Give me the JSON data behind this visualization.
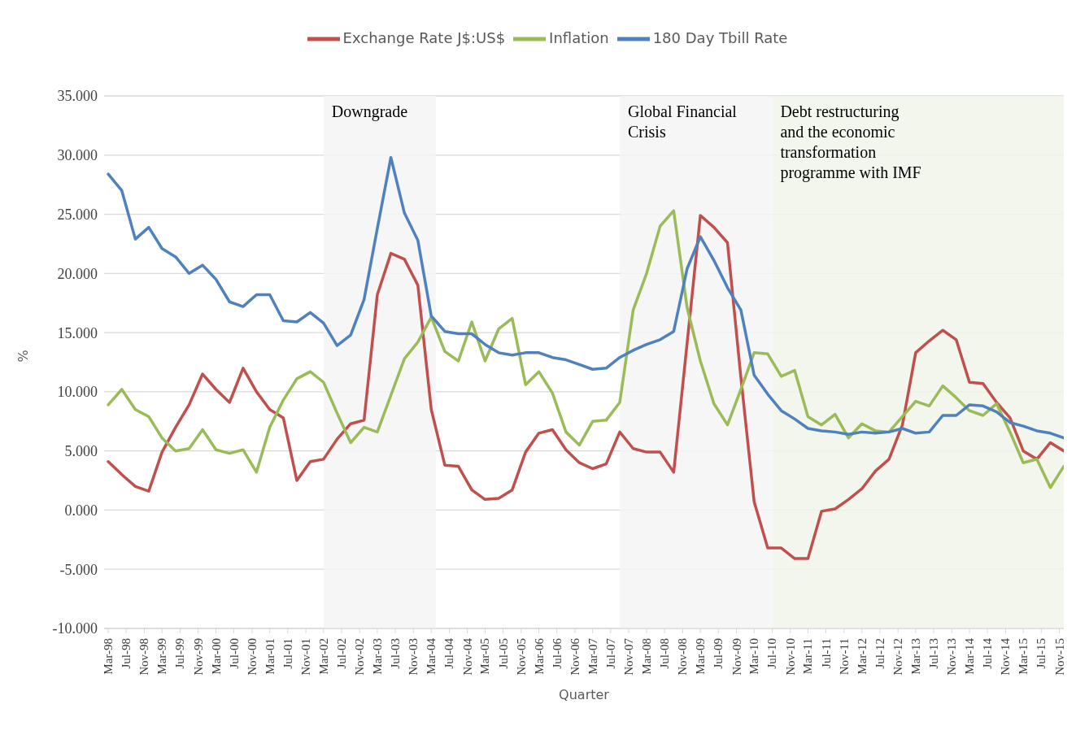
{
  "chart_data": {
    "type": "line",
    "xlabel": "Quarter",
    "ylabel": "%",
    "x": [
      "1998-03",
      "1998-06",
      "1998-09",
      "1998-12",
      "1999-03",
      "1999-06",
      "1999-09",
      "1999-12",
      "2000-03",
      "2000-06",
      "2000-09",
      "2000-12",
      "2001-03",
      "2001-06",
      "2001-09",
      "2001-12",
      "2002-03",
      "2002-06",
      "2002-09",
      "2002-12",
      "2003-03",
      "2003-06",
      "2003-09",
      "2003-12",
      "2004-03",
      "2004-06",
      "2004-09",
      "2004-12",
      "2005-03",
      "2005-06",
      "2005-09",
      "2005-12",
      "2006-03",
      "2006-06",
      "2006-09",
      "2006-12",
      "2007-03",
      "2007-06",
      "2007-09",
      "2007-12",
      "2008-03",
      "2008-06",
      "2008-09",
      "2008-12",
      "2009-03",
      "2009-06",
      "2009-09",
      "2009-12",
      "2010-03",
      "2010-06",
      "2010-09",
      "2010-12",
      "2011-03",
      "2011-06",
      "2011-09",
      "2011-12",
      "2012-03",
      "2012-06",
      "2012-09",
      "2012-12",
      "2013-03",
      "2013-06",
      "2013-09",
      "2013-12",
      "2014-03",
      "2014-06",
      "2014-09",
      "2014-12",
      "2015-03",
      "2015-06",
      "2015-09",
      "2015-12"
    ],
    "series": [
      {
        "name": "Exchange Rate J$:US$",
        "color": "#c0504d",
        "values": [
          4.1,
          3.0,
          2.0,
          1.6,
          4.9,
          7.0,
          8.9,
          11.5,
          10.2,
          9.1,
          12.0,
          10.0,
          8.5,
          7.8,
          2.5,
          4.1,
          4.3,
          6.0,
          7.3,
          7.6,
          18.2,
          21.7,
          21.2,
          19.0,
          8.5,
          3.8,
          3.7,
          1.7,
          0.9,
          1.0,
          1.7,
          4.9,
          6.5,
          6.8,
          5.1,
          4.0,
          3.5,
          3.9,
          6.6,
          5.2,
          4.9,
          4.9,
          3.2,
          14.1,
          24.9,
          23.9,
          22.6,
          11.2,
          0.7,
          -3.2,
          -3.2,
          -4.1,
          -4.1,
          -0.1,
          0.1,
          0.9,
          1.8,
          3.3,
          4.3,
          7.2,
          13.3,
          14.3,
          15.2,
          14.4,
          10.8,
          10.7,
          9.1,
          7.8,
          5.0,
          4.3,
          5.7,
          5.0
        ]
      },
      {
        "name": "Inflation",
        "color": "#9bbb59",
        "values": [
          8.9,
          10.2,
          8.5,
          7.9,
          6.1,
          5.0,
          5.2,
          6.8,
          5.1,
          4.8,
          5.1,
          3.2,
          7.0,
          9.3,
          11.1,
          11.7,
          10.8,
          8.2,
          5.7,
          7.0,
          6.6,
          9.7,
          12.8,
          14.2,
          16.3,
          13.4,
          12.6,
          15.9,
          12.6,
          15.3,
          16.2,
          10.6,
          11.7,
          9.9,
          6.6,
          5.5,
          7.5,
          7.6,
          9.1,
          16.9,
          20.0,
          24.0,
          25.3,
          17.1,
          12.6,
          9.0,
          7.2,
          10.2,
          13.3,
          13.2,
          11.3,
          11.8,
          7.9,
          7.2,
          8.1,
          6.1,
          7.3,
          6.7,
          6.6,
          7.9,
          9.2,
          8.8,
          10.5,
          9.5,
          8.4,
          8.0,
          9.0,
          6.6,
          4.0,
          4.3,
          1.9,
          3.7
        ]
      },
      {
        "name": "180 Day Tbill Rate",
        "color": "#4f81bd",
        "values": [
          28.4,
          27.0,
          22.9,
          23.9,
          22.1,
          21.4,
          20.0,
          20.7,
          19.5,
          17.6,
          17.2,
          18.2,
          18.2,
          16.0,
          15.9,
          16.7,
          15.8,
          13.9,
          14.8,
          17.8,
          23.8,
          29.8,
          25.1,
          22.8,
          16.4,
          15.1,
          14.9,
          14.9,
          14.0,
          13.3,
          13.1,
          13.3,
          13.3,
          12.9,
          12.7,
          12.3,
          11.9,
          12.0,
          12.9,
          13.5,
          14.0,
          14.4,
          15.1,
          20.4,
          23.1,
          21.1,
          18.8,
          16.9,
          11.4,
          9.8,
          8.4,
          7.7,
          6.9,
          6.7,
          6.6,
          6.4,
          6.6,
          6.5,
          6.6,
          6.9,
          6.5,
          6.6,
          8.0,
          8.0,
          8.9,
          8.8,
          8.3,
          7.4,
          7.1,
          6.7,
          6.5,
          6.1
        ]
      }
    ],
    "xlim": [
      "1998-02",
      "2015-12"
    ],
    "xticks": [
      {
        "value": "1998-03",
        "label": "Mar-98"
      },
      {
        "value": "1998-07",
        "label": "Jul-98"
      },
      {
        "value": "1998-11",
        "label": "Nov-98"
      },
      {
        "value": "1999-03",
        "label": "Mar-99"
      },
      {
        "value": "1999-07",
        "label": "Jul-99"
      },
      {
        "value": "1999-11",
        "label": "Nov-99"
      },
      {
        "value": "2000-03",
        "label": "Mar-00"
      },
      {
        "value": "2000-07",
        "label": "Jul-00"
      },
      {
        "value": "2000-11",
        "label": "Nov-00"
      },
      {
        "value": "2001-03",
        "label": "Mar-01"
      },
      {
        "value": "2001-07",
        "label": "Jul-01"
      },
      {
        "value": "2001-11",
        "label": "Nov-01"
      },
      {
        "value": "2002-03",
        "label": "Mar-02"
      },
      {
        "value": "2002-07",
        "label": "Jul-02"
      },
      {
        "value": "2002-11",
        "label": "Nov-02"
      },
      {
        "value": "2003-03",
        "label": "Mar-03"
      },
      {
        "value": "2003-07",
        "label": "Jul-03"
      },
      {
        "value": "2003-11",
        "label": "Nov-03"
      },
      {
        "value": "2004-03",
        "label": "Mar-04"
      },
      {
        "value": "2004-07",
        "label": "Jul-04"
      },
      {
        "value": "2004-11",
        "label": "Nov-04"
      },
      {
        "value": "2005-03",
        "label": "Mar-05"
      },
      {
        "value": "2005-07",
        "label": "Jul-05"
      },
      {
        "value": "2005-11",
        "label": "Nov-05"
      },
      {
        "value": "2006-03",
        "label": "Mar-06"
      },
      {
        "value": "2006-07",
        "label": "Jul-06"
      },
      {
        "value": "2006-11",
        "label": "Nov-06"
      },
      {
        "value": "2007-03",
        "label": "Mar-07"
      },
      {
        "value": "2007-07",
        "label": "Jul-07"
      },
      {
        "value": "2007-11",
        "label": "Nov-07"
      },
      {
        "value": "2008-03",
        "label": "Mar-08"
      },
      {
        "value": "2008-07",
        "label": "Jul-08"
      },
      {
        "value": "2008-11",
        "label": "Nov-08"
      },
      {
        "value": "2009-03",
        "label": "Mar-09"
      },
      {
        "value": "2009-07",
        "label": "Jul-09"
      },
      {
        "value": "2009-11",
        "label": "Nov-09"
      },
      {
        "value": "2010-03",
        "label": "Mar-10"
      },
      {
        "value": "2010-07",
        "label": "Jul-10"
      },
      {
        "value": "2010-11",
        "label": "Nov-10"
      },
      {
        "value": "2011-03",
        "label": "Mar-11"
      },
      {
        "value": "2011-07",
        "label": "Jul-11"
      },
      {
        "value": "2011-11",
        "label": "Nov-11"
      },
      {
        "value": "2012-03",
        "label": "Mar-12"
      },
      {
        "value": "2012-07",
        "label": "Jul-12"
      },
      {
        "value": "2012-11",
        "label": "Nov-12"
      },
      {
        "value": "2013-03",
        "label": "Mar-13"
      },
      {
        "value": "2013-07",
        "label": "Jul-13"
      },
      {
        "value": "2013-11",
        "label": "Nov-13"
      },
      {
        "value": "2014-03",
        "label": "Mar-14"
      },
      {
        "value": "2014-07",
        "label": "Jul-14"
      },
      {
        "value": "2014-11",
        "label": "Nov-14"
      },
      {
        "value": "2015-03",
        "label": "Mar-15"
      },
      {
        "value": "2015-07",
        "label": "Jul-15"
      },
      {
        "value": "2015-11",
        "label": "Nov-15"
      }
    ],
    "ylim": [
      -10,
      35
    ],
    "yticks": [
      {
        "value": -10,
        "label": "-10.000"
      },
      {
        "value": -5,
        "label": "-5.000"
      },
      {
        "value": 0,
        "label": "0.000"
      },
      {
        "value": 5,
        "label": "5.000"
      },
      {
        "value": 10,
        "label": "10.000"
      },
      {
        "value": 15,
        "label": "15.000"
      },
      {
        "value": 20,
        "label": "20.000"
      },
      {
        "value": 25,
        "label": "25.000"
      },
      {
        "value": 30,
        "label": "30.000"
      },
      {
        "value": 35,
        "label": "35.000"
      }
    ],
    "bands": [
      {
        "axis": "x",
        "from": "2002-03",
        "to": "2004-04",
        "label": "Downgrade",
        "color": "#f4f4f4"
      },
      {
        "axis": "x",
        "from": "2007-09",
        "to": "2010-07",
        "label": "Global Financial Crisis",
        "color": "#f4f4f4"
      },
      {
        "axis": "x",
        "from": "2010-07",
        "to": "2015-12",
        "label": "Debt restructuring and the economic transformation programme with IMF",
        "color": "#f1f5ea"
      }
    ],
    "grid": "y",
    "legend": "top",
    "marker": "none",
    "line_style": "solid"
  }
}
